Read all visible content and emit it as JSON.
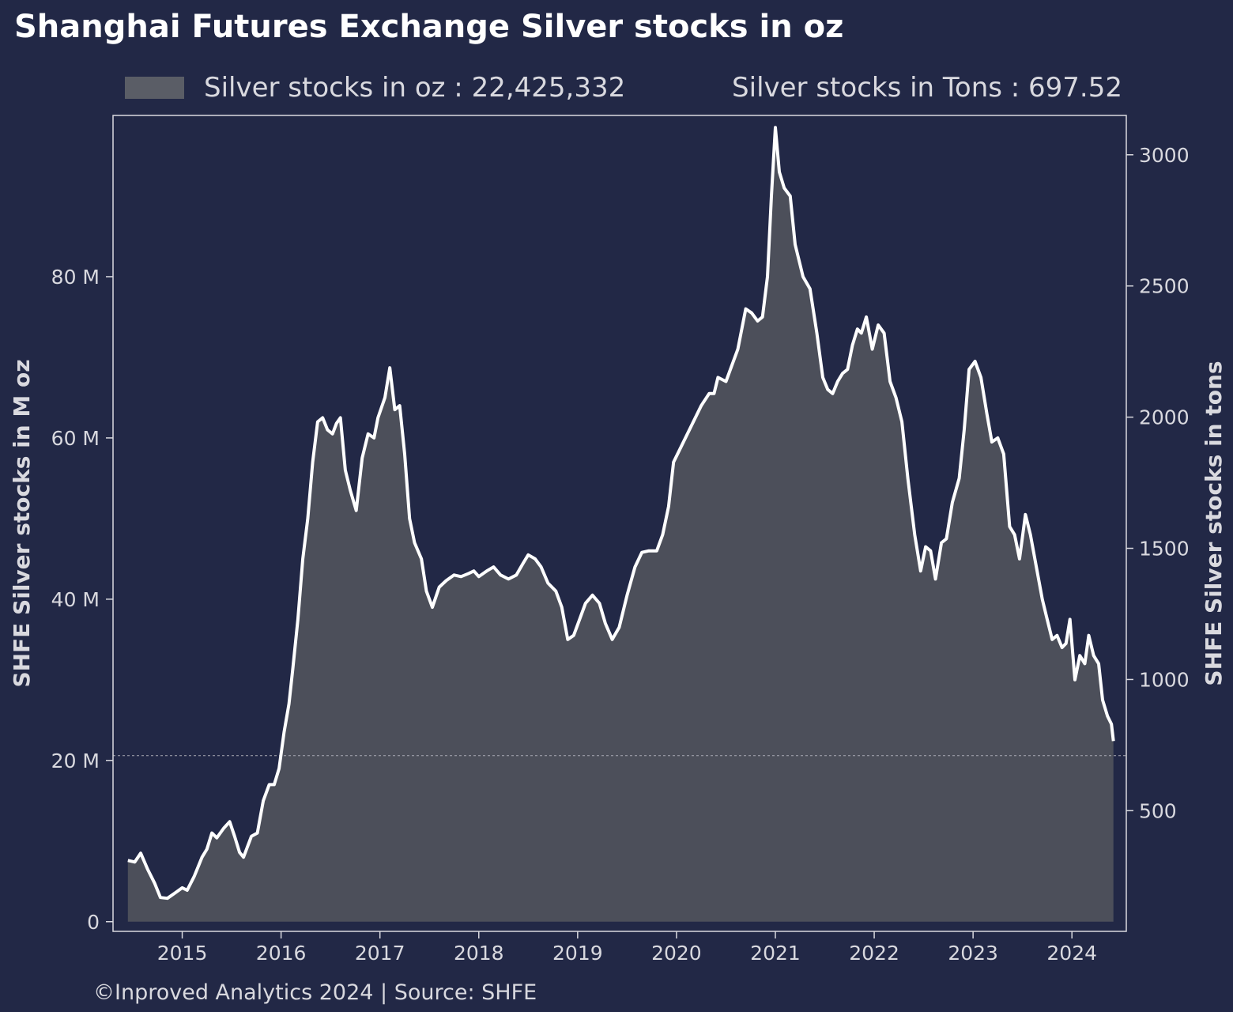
{
  "chart_data": {
    "type": "area",
    "title": "Shanghai Futures Exchange Silver stocks in oz",
    "legend": {
      "oz_label": "Silver stocks in oz : 22,425,332",
      "tons_label": "Silver stocks in Tons : 697.52",
      "placement": "top"
    },
    "ylabel_left": "SHFE Silver stocks in M oz",
    "ylabel_right": "SHFE Silver stocks in tons",
    "left_ticks": [
      {
        "value": 0,
        "label": "0"
      },
      {
        "value": 20,
        "label": "20 M"
      },
      {
        "value": 40,
        "label": "40 M"
      },
      {
        "value": 60,
        "label": "60 M"
      },
      {
        "value": 80,
        "label": "80 M"
      }
    ],
    "right_ticks": [
      {
        "value": 500,
        "label": "500"
      },
      {
        "value": 1000,
        "label": "1000"
      },
      {
        "value": 1500,
        "label": "1500"
      },
      {
        "value": 2000,
        "label": "2000"
      },
      {
        "value": 2500,
        "label": "2500"
      },
      {
        "value": 3000,
        "label": "3000"
      }
    ],
    "x_ticks": [
      {
        "value": 2015,
        "label": "2015"
      },
      {
        "value": 2016,
        "label": "2016"
      },
      {
        "value": 2017,
        "label": "2017"
      },
      {
        "value": 2018,
        "label": "2018"
      },
      {
        "value": 2019,
        "label": "2019"
      },
      {
        "value": 2020,
        "label": "2020"
      },
      {
        "value": 2021,
        "label": "2021"
      },
      {
        "value": 2022,
        "label": "2022"
      },
      {
        "value": 2023,
        "label": "2023"
      },
      {
        "value": 2024,
        "label": "2024"
      }
    ],
    "xlim": [
      2014.3,
      2024.55
    ],
    "ylim_left": [
      -1.2,
      100
    ],
    "ylim_right": [
      40,
      3150
    ],
    "reference_line_value": 20.6,
    "grid": false,
    "series": [
      {
        "name": "Silver stocks in oz",
        "unit": "M oz",
        "points": [
          [
            2014.45,
            7.6
          ],
          [
            2014.52,
            7.4
          ],
          [
            2014.58,
            8.5
          ],
          [
            2014.65,
            6.5
          ],
          [
            2014.72,
            4.8
          ],
          [
            2014.78,
            3.0
          ],
          [
            2014.85,
            2.9
          ],
          [
            2014.92,
            3.5
          ],
          [
            2015.0,
            4.2
          ],
          [
            2015.05,
            3.9
          ],
          [
            2015.12,
            5.6
          ],
          [
            2015.2,
            8.0
          ],
          [
            2015.25,
            9.0
          ],
          [
            2015.3,
            11.0
          ],
          [
            2015.35,
            10.4
          ],
          [
            2015.42,
            11.6
          ],
          [
            2015.48,
            12.4
          ],
          [
            2015.53,
            10.6
          ],
          [
            2015.58,
            8.6
          ],
          [
            2015.62,
            8.0
          ],
          [
            2015.7,
            10.6
          ],
          [
            2015.76,
            11.0
          ],
          [
            2015.82,
            15.0
          ],
          [
            2015.88,
            17.0
          ],
          [
            2015.93,
            17.0
          ],
          [
            2015.98,
            19.0
          ],
          [
            2016.03,
            23.5
          ],
          [
            2016.08,
            27.0
          ],
          [
            2016.12,
            31.5
          ],
          [
            2016.17,
            37.5
          ],
          [
            2016.22,
            45.0
          ],
          [
            2016.27,
            50.0
          ],
          [
            2016.32,
            57.0
          ],
          [
            2016.37,
            62.0
          ],
          [
            2016.42,
            62.5
          ],
          [
            2016.47,
            61.0
          ],
          [
            2016.52,
            60.5
          ],
          [
            2016.56,
            61.8
          ],
          [
            2016.6,
            62.5
          ],
          [
            2016.65,
            56.0
          ],
          [
            2016.7,
            53.5
          ],
          [
            2016.76,
            51.0
          ],
          [
            2016.82,
            57.5
          ],
          [
            2016.88,
            60.5
          ],
          [
            2016.94,
            60.0
          ],
          [
            2016.98,
            62.5
          ],
          [
            2017.05,
            65.0
          ],
          [
            2017.1,
            68.7
          ],
          [
            2017.15,
            63.5
          ],
          [
            2017.2,
            64.0
          ],
          [
            2017.25,
            58.0
          ],
          [
            2017.3,
            50.0
          ],
          [
            2017.35,
            47.0
          ],
          [
            2017.42,
            45.0
          ],
          [
            2017.47,
            41.0
          ],
          [
            2017.53,
            39.0
          ],
          [
            2017.6,
            41.5
          ],
          [
            2017.67,
            42.3
          ],
          [
            2017.75,
            43.0
          ],
          [
            2017.82,
            42.8
          ],
          [
            2017.9,
            43.2
          ],
          [
            2017.95,
            43.5
          ],
          [
            2018.0,
            42.8
          ],
          [
            2018.08,
            43.5
          ],
          [
            2018.15,
            44.0
          ],
          [
            2018.22,
            43.0
          ],
          [
            2018.3,
            42.5
          ],
          [
            2018.38,
            43.0
          ],
          [
            2018.45,
            44.5
          ],
          [
            2018.5,
            45.5
          ],
          [
            2018.57,
            45.0
          ],
          [
            2018.63,
            44.0
          ],
          [
            2018.7,
            42.0
          ],
          [
            2018.78,
            41.0
          ],
          [
            2018.84,
            39.0
          ],
          [
            2018.9,
            35.0
          ],
          [
            2018.96,
            35.5
          ],
          [
            2019.02,
            37.5
          ],
          [
            2019.08,
            39.5
          ],
          [
            2019.15,
            40.5
          ],
          [
            2019.22,
            39.5
          ],
          [
            2019.28,
            37.0
          ],
          [
            2019.35,
            35.0
          ],
          [
            2019.42,
            36.5
          ],
          [
            2019.5,
            40.5
          ],
          [
            2019.58,
            44.0
          ],
          [
            2019.65,
            45.8
          ],
          [
            2019.72,
            46.0
          ],
          [
            2019.8,
            46.0
          ],
          [
            2019.86,
            48.0
          ],
          [
            2019.92,
            51.5
          ],
          [
            2019.97,
            57.0
          ],
          [
            2020.05,
            59.0
          ],
          [
            2020.15,
            61.5
          ],
          [
            2020.25,
            64.0
          ],
          [
            2020.33,
            65.5
          ],
          [
            2020.38,
            65.5
          ],
          [
            2020.42,
            67.5
          ],
          [
            2020.5,
            67.0
          ],
          [
            2020.56,
            69.0
          ],
          [
            2020.62,
            71.0
          ],
          [
            2020.7,
            76.0
          ],
          [
            2020.76,
            75.5
          ],
          [
            2020.82,
            74.5
          ],
          [
            2020.87,
            75.0
          ],
          [
            2020.92,
            80.0
          ],
          [
            2020.96,
            90.0
          ],
          [
            2021.0,
            98.5
          ],
          [
            2021.04,
            93.0
          ],
          [
            2021.09,
            91.0
          ],
          [
            2021.15,
            90.0
          ],
          [
            2021.2,
            84.0
          ],
          [
            2021.28,
            80.0
          ],
          [
            2021.35,
            78.5
          ],
          [
            2021.42,
            73.0
          ],
          [
            2021.48,
            67.5
          ],
          [
            2021.53,
            66.0
          ],
          [
            2021.58,
            65.5
          ],
          [
            2021.63,
            67.0
          ],
          [
            2021.68,
            68.0
          ],
          [
            2021.73,
            68.5
          ],
          [
            2021.78,
            71.5
          ],
          [
            2021.83,
            73.5
          ],
          [
            2021.87,
            73.0
          ],
          [
            2021.92,
            75.0
          ],
          [
            2021.98,
            71.0
          ],
          [
            2022.04,
            74.0
          ],
          [
            2022.1,
            73.0
          ],
          [
            2022.16,
            67.0
          ],
          [
            2022.22,
            65.0
          ],
          [
            2022.28,
            62.0
          ],
          [
            2022.34,
            55.0
          ],
          [
            2022.41,
            48.0
          ],
          [
            2022.47,
            43.5
          ],
          [
            2022.52,
            46.5
          ],
          [
            2022.57,
            46.0
          ],
          [
            2022.62,
            42.5
          ],
          [
            2022.68,
            47.0
          ],
          [
            2022.73,
            47.5
          ],
          [
            2022.79,
            52.0
          ],
          [
            2022.86,
            55.0
          ],
          [
            2022.91,
            61.0
          ],
          [
            2022.96,
            68.5
          ],
          [
            2023.02,
            69.5
          ],
          [
            2023.08,
            67.5
          ],
          [
            2023.14,
            63.0
          ],
          [
            2023.19,
            59.5
          ],
          [
            2023.25,
            60.0
          ],
          [
            2023.31,
            58.0
          ],
          [
            2023.37,
            49.0
          ],
          [
            2023.42,
            48.0
          ],
          [
            2023.47,
            45.0
          ],
          [
            2023.53,
            50.5
          ],
          [
            2023.58,
            48.0
          ],
          [
            2023.64,
            44.0
          ],
          [
            2023.7,
            40.0
          ],
          [
            2023.75,
            37.5
          ],
          [
            2023.8,
            35.0
          ],
          [
            2023.85,
            35.5
          ],
          [
            2023.9,
            34.0
          ],
          [
            2023.94,
            34.5
          ],
          [
            2023.98,
            37.5
          ],
          [
            2024.03,
            30.0
          ],
          [
            2024.08,
            33.0
          ],
          [
            2024.13,
            32.0
          ],
          [
            2024.17,
            35.5
          ],
          [
            2024.22,
            33.0
          ],
          [
            2024.27,
            32.0
          ],
          [
            2024.31,
            27.5
          ],
          [
            2024.36,
            25.5
          ],
          [
            2024.4,
            24.5
          ],
          [
            2024.42,
            22.4
          ]
        ]
      }
    ]
  },
  "footer": {
    "text": "©Inproved Analytics 2024 | Source: SHFE"
  },
  "colors": {
    "background": "#222846",
    "fill": "#4c4f5a",
    "legend_swatch": "#5a5d66",
    "line": "#ffffff",
    "axis": "#d9d9df",
    "text": "#d9d9df",
    "title": "#ffffff"
  }
}
